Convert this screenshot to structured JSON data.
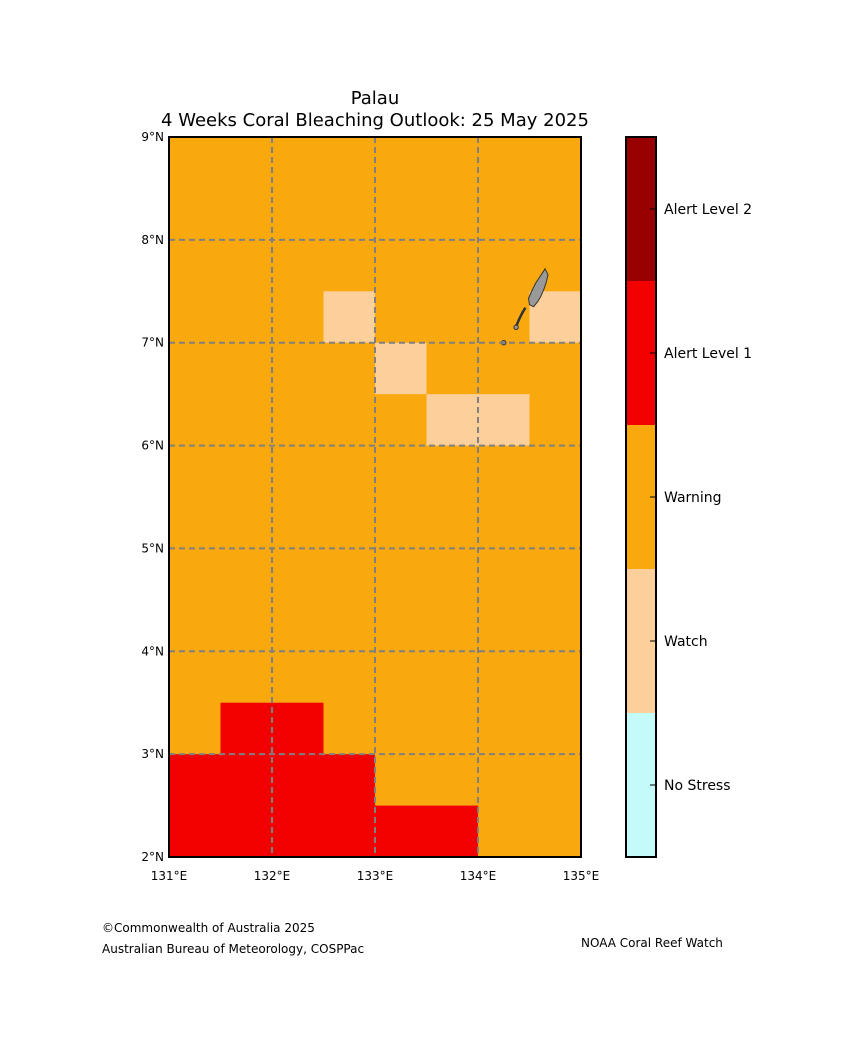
{
  "title": {
    "line1": "Palau",
    "line2": "4 Weeks Coral Bleaching Outlook: 25 May 2025"
  },
  "map": {
    "lon_range": [
      131,
      135
    ],
    "lat_range": [
      2,
      9
    ],
    "x_ticks": [
      {
        "value": 131,
        "label": "131°E"
      },
      {
        "value": 132,
        "label": "132°E"
      },
      {
        "value": 133,
        "label": "133°E"
      },
      {
        "value": 134,
        "label": "134°E"
      },
      {
        "value": 135,
        "label": "135°E"
      }
    ],
    "y_ticks": [
      {
        "value": 2,
        "label": "2°N"
      },
      {
        "value": 3,
        "label": "3°N"
      },
      {
        "value": 4,
        "label": "4°N"
      },
      {
        "value": 5,
        "label": "5°N"
      },
      {
        "value": 6,
        "label": "6°N"
      },
      {
        "value": 7,
        "label": "7°N"
      },
      {
        "value": 8,
        "label": "8°N"
      },
      {
        "value": 9,
        "label": "9°N"
      }
    ],
    "grid_lines": {
      "lon": [
        132,
        133,
        134
      ],
      "lat": [
        3,
        4,
        5,
        6,
        7,
        8
      ]
    },
    "background_level": "Warning",
    "cells": [
      {
        "lon": 132.5,
        "lat": 7.0,
        "size": 0.5,
        "level": "Watch"
      },
      {
        "lon": 133.0,
        "lat": 6.5,
        "size": 0.5,
        "level": "Watch"
      },
      {
        "lon": 133.5,
        "lat": 6.0,
        "size": 0.5,
        "level": "Watch"
      },
      {
        "lon": 134.0,
        "lat": 6.0,
        "size": 0.5,
        "level": "Watch"
      },
      {
        "lon": 134.5,
        "lat": 7.0,
        "size": 0.5,
        "level": "Watch"
      },
      {
        "lon": 131.5,
        "lat": 3.0,
        "size": 0.5,
        "level": "Alert Level 1"
      },
      {
        "lon": 132.0,
        "lat": 3.0,
        "size": 0.5,
        "level": "Alert Level 1"
      },
      {
        "lon": 131.0,
        "lat": 2.0,
        "size": 2.0,
        "h": 1.0,
        "level": "Alert Level 1"
      },
      {
        "lon": 133.0,
        "lat": 2.0,
        "size": 1.0,
        "h": 0.5,
        "level": "Alert Level 1"
      }
    ],
    "land": {
      "name": "Palau islands",
      "color": "#999999",
      "main": [
        [
          134.65,
          7.72
        ],
        [
          134.68,
          7.66
        ],
        [
          134.66,
          7.58
        ],
        [
          134.64,
          7.52
        ],
        [
          134.61,
          7.45
        ],
        [
          134.58,
          7.4
        ],
        [
          134.54,
          7.35
        ],
        [
          134.5,
          7.37
        ],
        [
          134.49,
          7.43
        ],
        [
          134.52,
          7.5
        ],
        [
          134.56,
          7.58
        ],
        [
          134.6,
          7.64
        ],
        [
          134.64,
          7.7
        ]
      ],
      "chain": [
        [
          134.46,
          7.34
        ],
        [
          134.43,
          7.29
        ],
        [
          134.4,
          7.23
        ],
        [
          134.37,
          7.16
        ]
      ],
      "islets": [
        [
          134.37,
          7.15
        ],
        [
          134.25,
          7.0
        ]
      ]
    }
  },
  "legend": {
    "levels": [
      {
        "label": "No Stress",
        "color": "#c5fafa"
      },
      {
        "label": "Watch",
        "color": "#fdd09b"
      },
      {
        "label": "Warning",
        "color": "#f9a80d"
      },
      {
        "label": "Alert Level 1",
        "color": "#f20000"
      },
      {
        "label": "Alert Level 2",
        "color": "#980000"
      }
    ]
  },
  "colors": {
    "grid": "#808080",
    "frame": "#000000"
  },
  "footer": {
    "copyright": "©Commonwealth of Australia 2025",
    "agency": "Australian Bureau of Meteorology, COSPPac",
    "right": "NOAA Coral Reef Watch"
  }
}
